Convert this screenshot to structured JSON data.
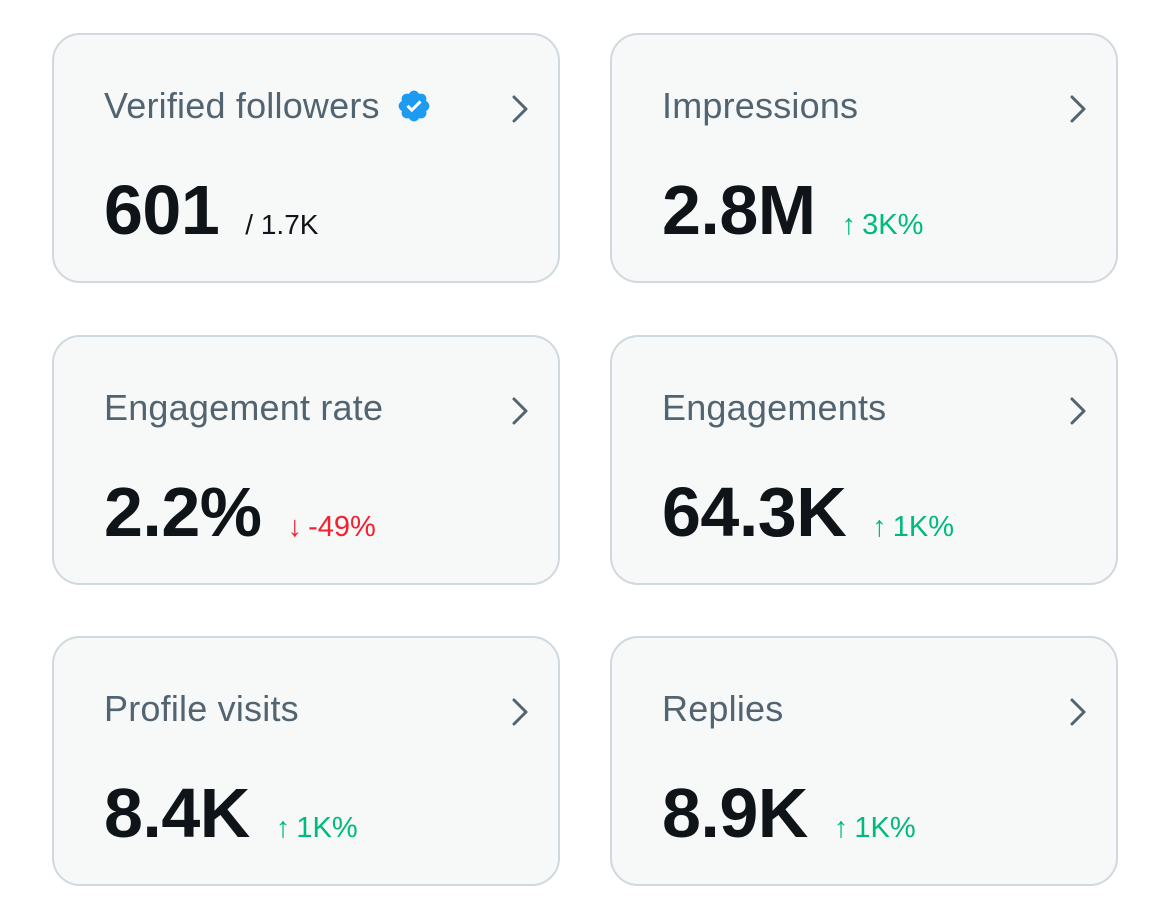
{
  "colors": {
    "card_background": "#f7f9f9",
    "card_border": "#cfd9de",
    "title": "#536471",
    "value": "#0f1419",
    "positive": "#00ba7c",
    "negative": "#f4212e",
    "verified_badge": "#1d9bf0",
    "chevron": "#536471"
  },
  "cards": [
    {
      "title": "Verified followers",
      "value": "601",
      "secondary": "/ 1.7K",
      "has_verified_badge": true
    },
    {
      "title": "Impressions",
      "value": "2.8M",
      "change": {
        "direction": "up",
        "arrow": "↑",
        "text": "3K%"
      }
    },
    {
      "title": "Engagement rate",
      "value": "2.2%",
      "change": {
        "direction": "down",
        "arrow": "↓",
        "text": "-49%"
      }
    },
    {
      "title": "Engagements",
      "value": "64.3K",
      "change": {
        "direction": "up",
        "arrow": "↑",
        "text": "1K%"
      }
    },
    {
      "title": "Profile visits",
      "value": "8.4K",
      "change": {
        "direction": "up",
        "arrow": "↑",
        "text": "1K%"
      }
    },
    {
      "title": "Replies",
      "value": "8.9K",
      "change": {
        "direction": "up",
        "arrow": "↑",
        "text": "1K%"
      }
    }
  ],
  "icons": {
    "verified": "verified-badge-icon",
    "chevron": "chevron-right-icon"
  }
}
